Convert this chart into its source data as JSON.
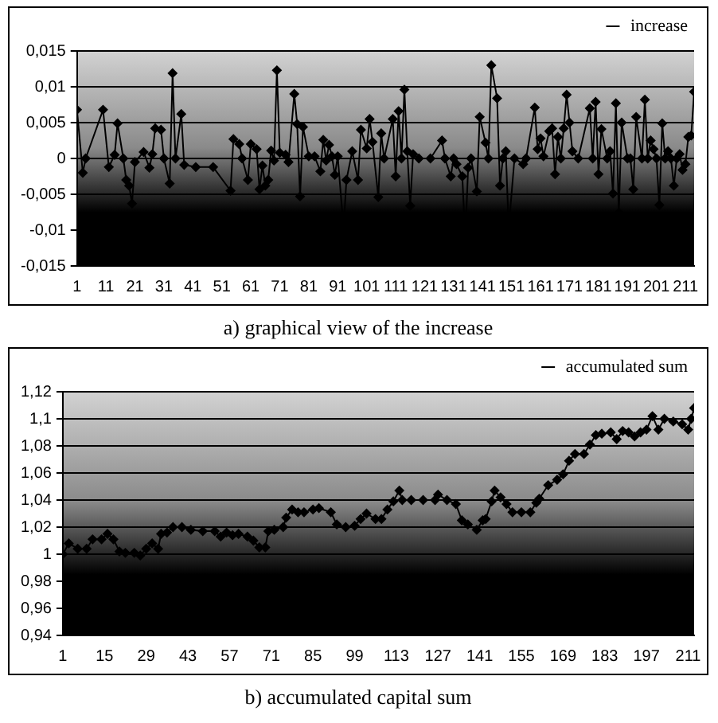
{
  "chart_data": [
    {
      "type": "line",
      "title": "a) graphical view of the increase",
      "legend": "top right",
      "grid": "y",
      "marker": "diamond",
      "xlim": [
        1,
        214
      ],
      "xticks": [
        1,
        11,
        21,
        31,
        41,
        51,
        61,
        71,
        81,
        91,
        101,
        111,
        121,
        131,
        141,
        151,
        161,
        171,
        181,
        191,
        201,
        211
      ],
      "ylim": [
        -0.015,
        0.015
      ],
      "yticks": [
        {
          "value": -0.015,
          "label": "-0,015"
        },
        {
          "value": -0.01,
          "label": "-0,01"
        },
        {
          "value": -0.005,
          "label": "-0,005"
        },
        {
          "value": 0,
          "label": "0"
        },
        {
          "value": 0.005,
          "label": "0,005"
        },
        {
          "value": 0.01,
          "label": "0,01"
        },
        {
          "value": 0.015,
          "label": "0,015"
        }
      ],
      "series": [
        {
          "name": "increase",
          "color": "#000000",
          "x": [
            1,
            3,
            4,
            10,
            12,
            14,
            15,
            17,
            18,
            19,
            20,
            21,
            24,
            26,
            27,
            28,
            30,
            31,
            33,
            34,
            35,
            37,
            38,
            42,
            48,
            54,
            55,
            57,
            58,
            60,
            61,
            63,
            64,
            65,
            66,
            67,
            68,
            69,
            70,
            71,
            73,
            74,
            76,
            77,
            78,
            79,
            81,
            83,
            85,
            86,
            87,
            88,
            89,
            90,
            91,
            93,
            94,
            96,
            98,
            99,
            101,
            102,
            103,
            105,
            106,
            107,
            110,
            111,
            112,
            113,
            114,
            115,
            116,
            117,
            119,
            123,
            127,
            128,
            130,
            131,
            132,
            134,
            135,
            136,
            137,
            139,
            140,
            142,
            143,
            144,
            146,
            147,
            148,
            149,
            150,
            152,
            155,
            156,
            159,
            160,
            161,
            162,
            164,
            165,
            166,
            167,
            168,
            169,
            170,
            171,
            172,
            174,
            178,
            179,
            180,
            181,
            182,
            184,
            185,
            186,
            187,
            188,
            189,
            191,
            192,
            193,
            194,
            196,
            197,
            198,
            199,
            200,
            201,
            202,
            203,
            204,
            205,
            206,
            207,
            208,
            209,
            210,
            211,
            212,
            213,
            214
          ],
          "values": [
            0.0068,
            -0.002,
            0,
            0.0068,
            -0.0012,
            0.0005,
            0.0049,
            0,
            -0.003,
            -0.0038,
            -0.0063,
            -0.0005,
            0.0009,
            -0.0013,
            0.0006,
            0.0042,
            0.004,
            0,
            -0.0035,
            0.0119,
            0,
            0.0062,
            -0.0009,
            -0.0012,
            -0.0012,
            -0.0045,
            0.0027,
            0.002,
            0,
            -0.003,
            0.002,
            0.0013,
            -0.0043,
            -0.001,
            -0.0038,
            -0.003,
            0.0011,
            -0.0003,
            0.0123,
            0.0008,
            0.0005,
            -0.0005,
            0.009,
            0.0048,
            -0.0053,
            0.0044,
            0.0003,
            0.0003,
            -0.0018,
            0.0026,
            -0.0003,
            0.0019,
            0.0003,
            -0.0023,
            0.0003,
            -0.0098,
            -0.003,
            0.001,
            -0.003,
            0.004,
            0.0014,
            0.0055,
            0.0023,
            -0.0054,
            0.0035,
            0,
            0.0055,
            -0.0025,
            0.0066,
            0,
            0.0096,
            0.001,
            -0.0066,
            0.0006,
            0,
            0,
            0.0025,
            0,
            -0.0025,
            0,
            -0.0008,
            -0.0025,
            -0.0115,
            -0.0013,
            0,
            -0.0046,
            0.0058,
            0.0022,
            0,
            0.013,
            0.0084,
            -0.0038,
            0,
            0.001,
            -0.0098,
            0,
            -0.0008,
            0,
            0.0071,
            0.0013,
            0.0028,
            0.0003,
            0.0038,
            0.0042,
            -0.0022,
            0.003,
            0,
            0.0042,
            0.0089,
            0.005,
            0.001,
            0,
            0.007,
            0,
            0.0079,
            -0.0022,
            0.0041,
            0,
            0.001,
            -0.0049,
            0.0077,
            -0.0076,
            0.005,
            0,
            0,
            -0.0043,
            0.0058,
            0,
            0.0082,
            0,
            0.0025,
            0.0013,
            0,
            -0.0065,
            0.0049,
            0,
            0.001,
            0,
            -0.0038,
            0,
            0.0006,
            -0.0016,
            -0.0008,
            0.003,
            0.0032,
            0.0093
          ]
        }
      ]
    },
    {
      "type": "line",
      "title": "b) accumulated capital sum",
      "legend": "top right",
      "grid": "y",
      "marker": "diamond",
      "xlim": [
        1,
        213
      ],
      "xticks": [
        1,
        15,
        29,
        43,
        57,
        71,
        85,
        99,
        113,
        127,
        141,
        155,
        169,
        183,
        197,
        211
      ],
      "ylim": [
        0.94,
        1.12
      ],
      "yticks": [
        {
          "value": 0.94,
          "label": "0,94"
        },
        {
          "value": 0.96,
          "label": "0,96"
        },
        {
          "value": 0.98,
          "label": "0,98"
        },
        {
          "value": 1,
          "label": "1"
        },
        {
          "value": 1.02,
          "label": "1,02"
        },
        {
          "value": 1.04,
          "label": "1,04"
        },
        {
          "value": 1.06,
          "label": "1,06"
        },
        {
          "value": 1.08,
          "label": "1,08"
        },
        {
          "value": 1.1,
          "label": "1,1"
        },
        {
          "value": 1.12,
          "label": "1,12"
        }
      ],
      "series": [
        {
          "name": "accumulated sum",
          "color": "#000000",
          "x": [
            1,
            3,
            6,
            9,
            11,
            14,
            16,
            18,
            20,
            22,
            25,
            27,
            29,
            31,
            33,
            34,
            36,
            38,
            41,
            44,
            48,
            52,
            54,
            56,
            58,
            60,
            63,
            65,
            67,
            69,
            70,
            72,
            75,
            76,
            78,
            80,
            82,
            85,
            87,
            91,
            93,
            96,
            99,
            101,
            103,
            106,
            108,
            110,
            112,
            114,
            115,
            118,
            122,
            126,
            127,
            130,
            133,
            135,
            137,
            140,
            142,
            143,
            145,
            146,
            148,
            150,
            152,
            155,
            158,
            160,
            161,
            164,
            167,
            169,
            171,
            173,
            176,
            178,
            180,
            182,
            185,
            187,
            189,
            191,
            193,
            195,
            197,
            199,
            201,
            203,
            206,
            209,
            211,
            212,
            213
          ],
          "values": [
            1.0,
            1.008,
            1.004,
            1.004,
            1.011,
            1.011,
            1.015,
            1.011,
            1.002,
            1.001,
            1.001,
            0.999,
            1.004,
            1.008,
            1.004,
            1.015,
            1.016,
            1.02,
            1.02,
            1.018,
            1.017,
            1.017,
            1.013,
            1.016,
            1.014,
            1.015,
            1.013,
            1.01,
            1.005,
            1.005,
            1.017,
            1.018,
            1.02,
            1.027,
            1.033,
            1.031,
            1.031,
            1.033,
            1.034,
            1.031,
            1.022,
            1.02,
            1.021,
            1.026,
            1.03,
            1.026,
            1.026,
            1.033,
            1.039,
            1.047,
            1.04,
            1.04,
            1.04,
            1.04,
            1.044,
            1.04,
            1.037,
            1.025,
            1.022,
            1.018,
            1.025,
            1.026,
            1.039,
            1.047,
            1.042,
            1.037,
            1.031,
            1.031,
            1.031,
            1.038,
            1.041,
            1.051,
            1.055,
            1.059,
            1.069,
            1.074,
            1.074,
            1.081,
            1.088,
            1.089,
            1.09,
            1.085,
            1.091,
            1.09,
            1.087,
            1.09,
            1.092,
            1.102,
            1.092,
            1.1,
            1.098,
            1.096,
            1.092,
            1.1,
            1.108
          ]
        }
      ]
    }
  ]
}
